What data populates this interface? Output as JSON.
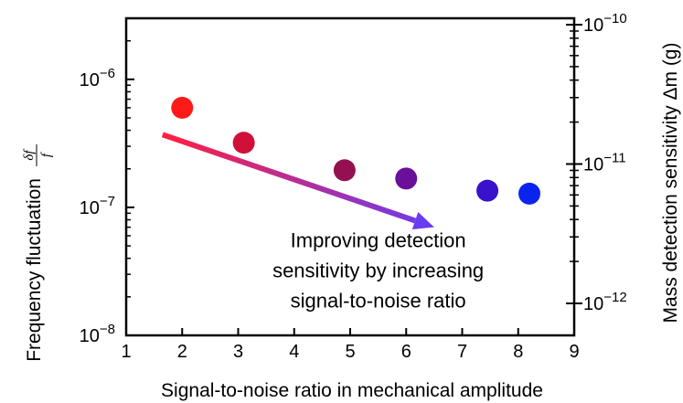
{
  "chart_data": {
    "type": "scatter",
    "title": "",
    "xlabel": "Signal-to-noise ratio in mechanical amplitude",
    "ylabel": "Frequency fluctuation",
    "ylabel_fraction_numerator": "δf",
    "ylabel_fraction_denominator": "f",
    "y2label": "Mass detection sensitivity Δm (g)",
    "xlim": [
      1,
      9
    ],
    "ylim": [
      1e-08,
      3e-06
    ],
    "yscale": "log",
    "y2lim": [
      1e-12,
      1e-10
    ],
    "y2scale": "log",
    "xticks": [
      {
        "value": 1,
        "label": "1"
      },
      {
        "value": 2,
        "label": "2"
      },
      {
        "value": 3,
        "label": "3"
      },
      {
        "value": 4,
        "label": "4"
      },
      {
        "value": 5,
        "label": "5"
      },
      {
        "value": 6,
        "label": "6"
      },
      {
        "value": 7,
        "label": "7"
      },
      {
        "value": 8,
        "label": "8"
      },
      {
        "value": 9,
        "label": "9"
      }
    ],
    "yticks": [
      {
        "value": 1e-06,
        "base": "10",
        "exp": "−6"
      },
      {
        "value": 1e-07,
        "base": "10",
        "exp": "−7"
      },
      {
        "value": 1e-08,
        "base": "10",
        "exp": "−8"
      }
    ],
    "y2ticks": [
      {
        "value": 1e-10,
        "base": "10",
        "exp": "−10"
      },
      {
        "value": 1e-11,
        "base": "10",
        "exp": "−11"
      },
      {
        "value": 1e-12,
        "base": "10",
        "exp": "−12"
      }
    ],
    "grid": false,
    "points": [
      {
        "x": 2.0,
        "y": 6e-07,
        "color": "#ff1a1a"
      },
      {
        "x": 3.1,
        "y": 3.2e-07,
        "color": "#d01038"
      },
      {
        "x": 4.9,
        "y": 1.95e-07,
        "color": "#951050"
      },
      {
        "x": 6.0,
        "y": 1.68e-07,
        "color": "#6a0f9a"
      },
      {
        "x": 7.45,
        "y": 1.35e-07,
        "color": "#3a12cc"
      },
      {
        "x": 8.2,
        "y": 1.28e-07,
        "color": "#0a24f0"
      }
    ],
    "arrow": {
      "x1": 1.65,
      "y1": 3.7e-07,
      "x2": 6.5,
      "y2": 7e-08,
      "color_start": "#ff2040",
      "color_end": "#6a3cf0"
    },
    "annotation": {
      "lines": [
        "Improving detection",
        "sensitivity by increasing",
        "signal-to-noise ratio"
      ],
      "x": 5.5,
      "y": 4e-08
    }
  }
}
